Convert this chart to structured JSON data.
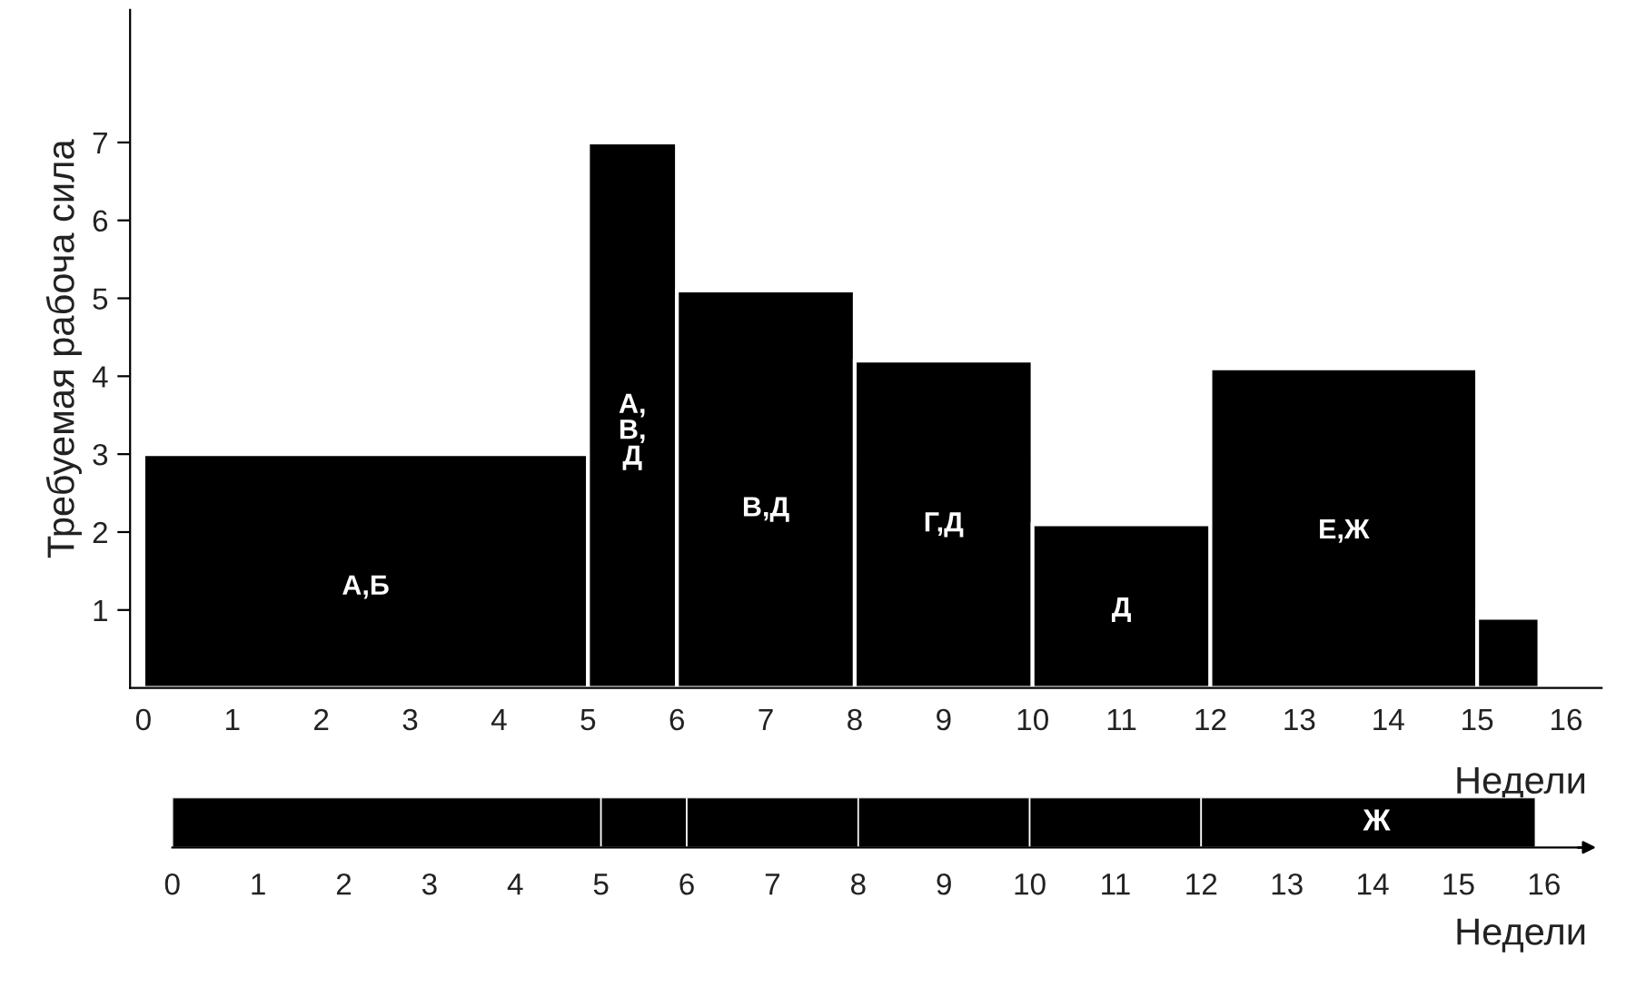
{
  "chart_data": [
    {
      "type": "histogram",
      "ylabel": "Требуемая рабоча сила",
      "xlabel": "Недели",
      "color": "#000000",
      "bins": [
        0,
        5,
        6,
        8,
        10,
        12,
        15,
        15.7
      ],
      "values": [
        3,
        7,
        5.1,
        4.2,
        2.1,
        4.1,
        0.9
      ],
      "annotations": [
        "А,Б",
        "А,\nВ,\nД",
        "В,Д",
        "Г,Д",
        "Д",
        "Е,Ж"
      ],
      "xlim": [
        -0.15,
        16.4
      ],
      "ylim": [
        0,
        8.7
      ],
      "xticks": [
        0,
        1,
        2,
        3,
        4,
        5,
        6,
        7,
        8,
        9,
        10,
        11,
        12,
        13,
        14,
        15,
        16
      ],
      "yticks": [
        1,
        2,
        3,
        4,
        5,
        6,
        7
      ]
    },
    {
      "type": "bar",
      "orientation": "horizontal",
      "stacked": true,
      "xlabel": "Недели",
      "categories": [
        null
      ],
      "series": [
        {
          "color": "#000000",
          "values": [
            5
          ]
        },
        {
          "color": "#000000",
          "values": [
            1
          ]
        },
        {
          "color": "#000000",
          "values": [
            2
          ]
        },
        {
          "color": "#000000",
          "values": [
            2
          ]
        },
        {
          "color": "#000000",
          "values": [
            2
          ]
        },
        {
          "color": "#000000",
          "values": [
            3.9
          ]
        }
      ],
      "annotations": [
        "Ж"
      ],
      "xlim": [
        0,
        16.5
      ],
      "xticks": [
        0,
        1,
        2,
        3,
        4,
        5,
        6,
        7,
        8,
        9,
        10,
        11,
        12,
        13,
        14,
        15,
        16
      ],
      "tick_labels": "x"
    }
  ]
}
